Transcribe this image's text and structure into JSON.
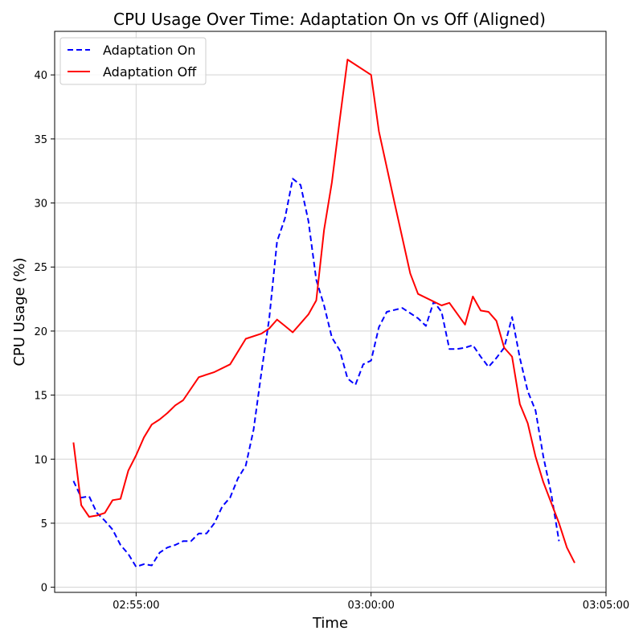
{
  "chart_data": {
    "type": "line",
    "title": "CPU Usage Over Time: Adaptation On vs Off (Aligned)",
    "xlabel": "Time",
    "ylabel": "CPU Usage (%)",
    "xlim": [
      "02:53:16",
      "03:05:00"
    ],
    "ylim": [
      -0.4,
      43.4
    ],
    "x_ticks": [
      "02:55:00",
      "03:00:00",
      "03:05:00"
    ],
    "y_ticks": [
      0,
      5,
      10,
      15,
      20,
      25,
      30,
      35,
      40
    ],
    "grid": true,
    "legend_position": "top-left",
    "series": [
      {
        "name": "Adaptation On",
        "color": "#0000ff",
        "style": "dashed",
        "points": [
          [
            "02:53:40",
            8.3
          ],
          [
            "02:53:50",
            7.0
          ],
          [
            "02:54:00",
            7.1
          ],
          [
            "02:54:10",
            5.8
          ],
          [
            "02:54:20",
            5.2
          ],
          [
            "02:54:30",
            4.5
          ],
          [
            "02:54:40",
            3.3
          ],
          [
            "02:54:50",
            2.6
          ],
          [
            "02:55:00",
            1.6
          ],
          [
            "02:55:10",
            1.8
          ],
          [
            "02:55:20",
            1.7
          ],
          [
            "02:55:30",
            2.7
          ],
          [
            "02:55:40",
            3.1
          ],
          [
            "02:55:50",
            3.3
          ],
          [
            "02:56:00",
            3.6
          ],
          [
            "02:56:10",
            3.6
          ],
          [
            "02:56:20",
            4.2
          ],
          [
            "02:56:30",
            4.2
          ],
          [
            "02:56:40",
            5.0
          ],
          [
            "02:56:50",
            6.3
          ],
          [
            "02:57:00",
            7.0
          ],
          [
            "02:57:10",
            8.5
          ],
          [
            "02:57:20",
            9.5
          ],
          [
            "02:57:30",
            12.3
          ],
          [
            "02:57:40",
            16.8
          ],
          [
            "02:57:50",
            21.0
          ],
          [
            "02:58:00",
            27.0
          ],
          [
            "02:58:10",
            28.8
          ],
          [
            "02:58:20",
            31.9
          ],
          [
            "02:58:30",
            31.4
          ],
          [
            "02:58:40",
            28.6
          ],
          [
            "02:58:50",
            24.0
          ],
          [
            "02:59:00",
            22.0
          ],
          [
            "02:59:10",
            19.5
          ],
          [
            "02:59:20",
            18.5
          ],
          [
            "02:59:30",
            16.3
          ],
          [
            "02:59:40",
            15.8
          ],
          [
            "02:59:50",
            17.4
          ],
          [
            "03:00:00",
            17.7
          ],
          [
            "03:00:10",
            20.3
          ],
          [
            "03:00:20",
            21.5
          ],
          [
            "03:00:40",
            21.8
          ],
          [
            "03:01:00",
            21.0
          ],
          [
            "03:01:10",
            20.4
          ],
          [
            "03:01:20",
            22.3
          ],
          [
            "03:01:30",
            21.5
          ],
          [
            "03:01:40",
            18.6
          ],
          [
            "03:01:50",
            18.6
          ],
          [
            "03:02:00",
            18.7
          ],
          [
            "03:02:10",
            18.9
          ],
          [
            "03:02:20",
            18.0
          ],
          [
            "03:02:30",
            17.2
          ],
          [
            "03:02:40",
            17.9
          ],
          [
            "03:02:50",
            18.7
          ],
          [
            "03:03:00",
            21.1
          ],
          [
            "03:03:10",
            17.9
          ],
          [
            "03:03:20",
            15.3
          ],
          [
            "03:03:30",
            13.8
          ],
          [
            "03:03:40",
            10.2
          ],
          [
            "03:03:50",
            7.3
          ],
          [
            "03:04:00",
            3.6
          ]
        ]
      },
      {
        "name": "Adaptation Off",
        "color": "#ff0000",
        "style": "solid",
        "points": [
          [
            "02:53:40",
            11.3
          ],
          [
            "02:53:50",
            6.4
          ],
          [
            "02:54:00",
            5.5
          ],
          [
            "02:54:10",
            5.6
          ],
          [
            "02:54:20",
            5.8
          ],
          [
            "02:54:30",
            6.8
          ],
          [
            "02:54:40",
            6.9
          ],
          [
            "02:54:50",
            9.1
          ],
          [
            "02:55:00",
            10.3
          ],
          [
            "02:55:10",
            11.7
          ],
          [
            "02:55:20",
            12.7
          ],
          [
            "02:55:30",
            13.1
          ],
          [
            "02:55:40",
            13.6
          ],
          [
            "02:55:50",
            14.2
          ],
          [
            "02:56:00",
            14.6
          ],
          [
            "02:56:20",
            16.4
          ],
          [
            "02:56:40",
            16.8
          ],
          [
            "02:57:00",
            17.4
          ],
          [
            "02:57:20",
            19.4
          ],
          [
            "02:57:40",
            19.8
          ],
          [
            "02:57:50",
            20.2
          ],
          [
            "02:58:00",
            20.9
          ],
          [
            "02:58:10",
            20.4
          ],
          [
            "02:58:20",
            19.9
          ],
          [
            "02:58:30",
            20.6
          ],
          [
            "02:58:40",
            21.3
          ],
          [
            "02:58:50",
            22.4
          ],
          [
            "02:59:00",
            27.9
          ],
          [
            "02:59:10",
            31.6
          ],
          [
            "02:59:20",
            36.5
          ],
          [
            "02:59:30",
            41.2
          ],
          [
            "03:00:00",
            40.0
          ],
          [
            "03:00:10",
            35.6
          ],
          [
            "03:00:30",
            30.0
          ],
          [
            "03:00:50",
            24.5
          ],
          [
            "03:01:00",
            22.9
          ],
          [
            "03:01:30",
            22.0
          ],
          [
            "03:01:40",
            22.2
          ],
          [
            "03:02:00",
            20.5
          ],
          [
            "03:02:10",
            22.7
          ],
          [
            "03:02:20",
            21.6
          ],
          [
            "03:02:30",
            21.5
          ],
          [
            "03:02:40",
            20.8
          ],
          [
            "03:02:50",
            18.7
          ],
          [
            "03:03:00",
            18.0
          ],
          [
            "03:03:10",
            14.3
          ],
          [
            "03:03:20",
            12.8
          ],
          [
            "03:03:30",
            10.2
          ],
          [
            "03:03:40",
            8.2
          ],
          [
            "03:04:00",
            5.0
          ],
          [
            "03:04:10",
            3.1
          ],
          [
            "03:04:20",
            1.9
          ]
        ]
      }
    ]
  }
}
